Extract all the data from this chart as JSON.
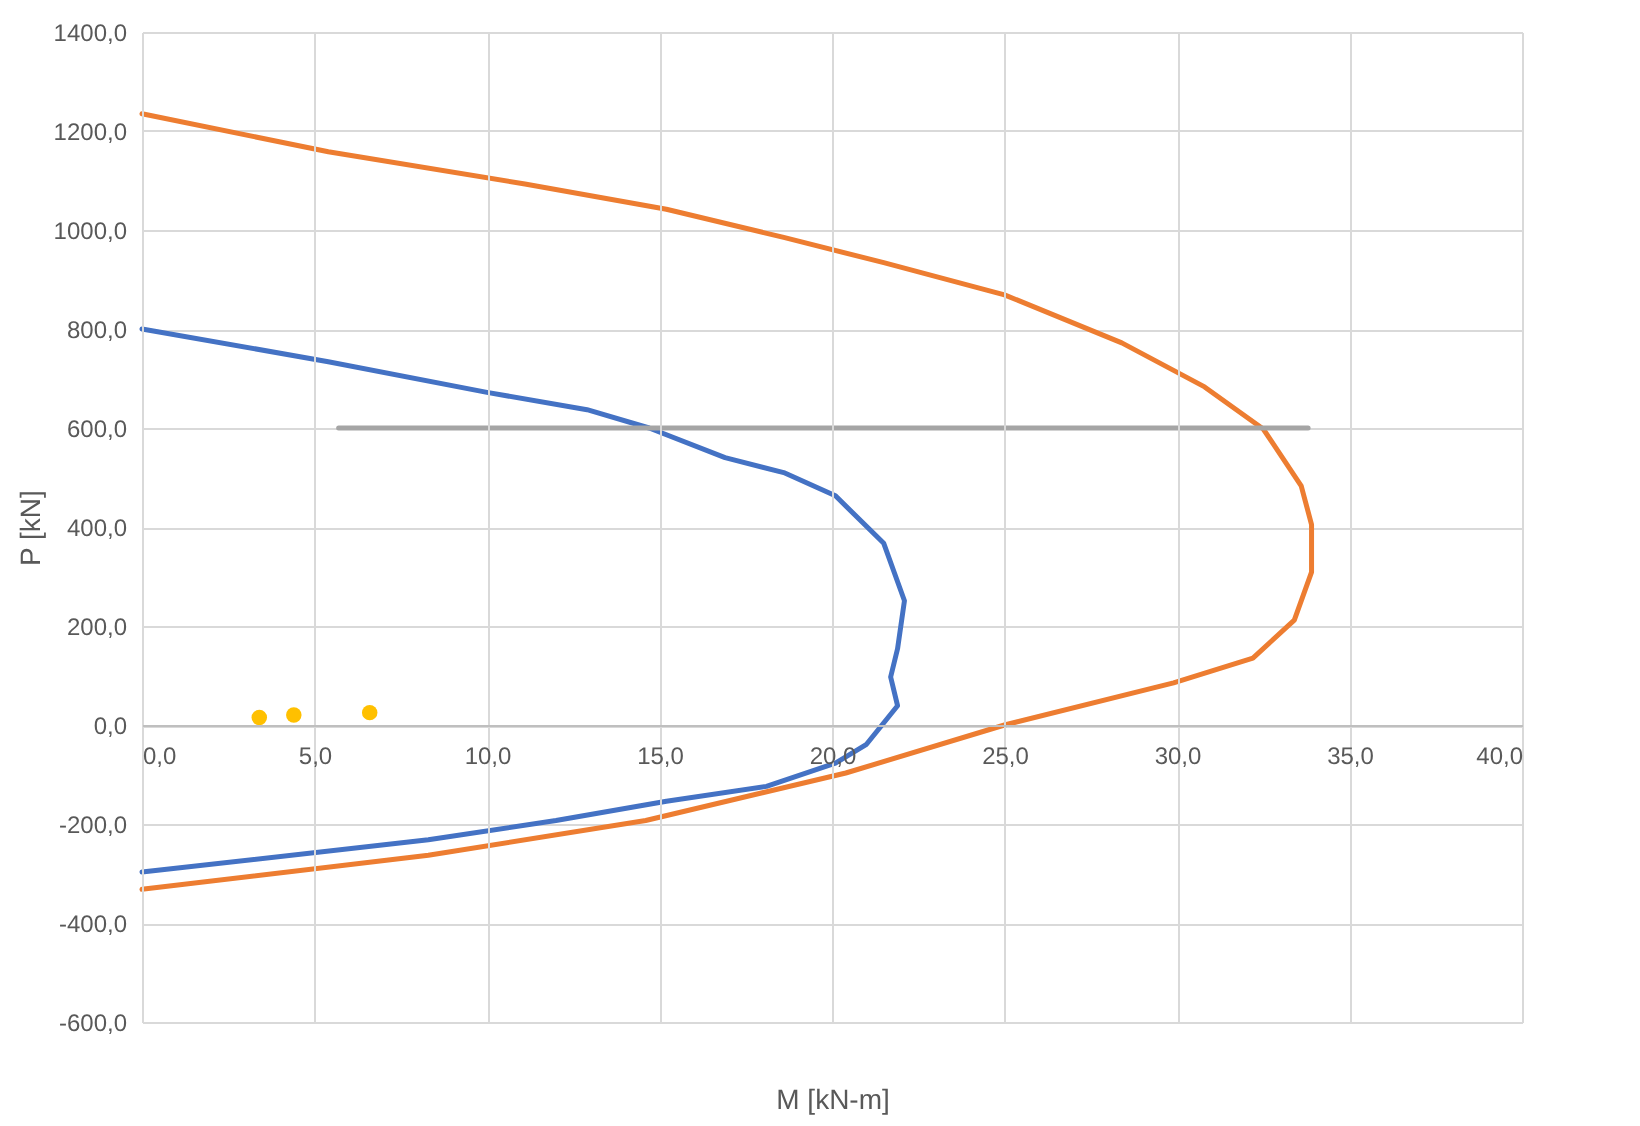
{
  "chart_data": {
    "type": "line",
    "xlabel": "M [kN-m]",
    "ylabel": "P [kN]",
    "xlim": [
      0,
      40
    ],
    "ylim": [
      -600,
      1400
    ],
    "xticks": [
      {
        "value": 0,
        "label": "0,0"
      },
      {
        "value": 5,
        "label": "5,0"
      },
      {
        "value": 10,
        "label": "10,0"
      },
      {
        "value": 15,
        "label": "15,0"
      },
      {
        "value": 20,
        "label": "20,0"
      },
      {
        "value": 25,
        "label": "25,0"
      },
      {
        "value": 30,
        "label": "30,0"
      },
      {
        "value": 35,
        "label": "35,0"
      },
      {
        "value": 40,
        "label": "40,0"
      }
    ],
    "yticks": [
      {
        "value": -600,
        "label": "-600,0"
      },
      {
        "value": -400,
        "label": "-400,0"
      },
      {
        "value": -200,
        "label": "-200,0"
      },
      {
        "value": 0,
        "label": "0,0"
      },
      {
        "value": 200,
        "label": "200,0"
      },
      {
        "value": 400,
        "label": "400,0"
      },
      {
        "value": 600,
        "label": "600,0"
      },
      {
        "value": 800,
        "label": "800,0"
      },
      {
        "value": 1000,
        "label": "1000,0"
      },
      {
        "value": 1200,
        "label": "1200,0"
      },
      {
        "value": 1400,
        "label": "1400,0"
      }
    ],
    "grid": true,
    "series": [
      {
        "color": "#4472c4",
        "x": [
          0,
          5.4,
          10,
          12.9,
          14.7,
          16.9,
          18.6,
          20.1,
          21.5,
          22.1,
          21.9,
          21.7,
          21.9,
          21,
          20.1,
          18.1,
          15.2,
          12,
          8.3,
          0
        ],
        "values": [
          800,
          734,
          672,
          637,
          600,
          540,
          510,
          463,
          367,
          251,
          154,
          97,
          39,
          -39,
          -77,
          -124,
          -154,
          -193,
          -232,
          -297
        ]
      },
      {
        "color": "#ed7d31",
        "x": [
          0,
          5.4,
          11.1,
          15.2,
          18.6,
          21.5,
          25,
          28.4,
          30.8,
          32.5,
          33.6,
          33.9,
          33.9,
          33.4,
          32.2,
          29.9,
          25,
          20.4,
          14.6,
          8.3,
          0
        ],
        "values": [
          1235,
          1158,
          1093,
          1042,
          985,
          934,
          869,
          772,
          683,
          598,
          483,
          405,
          309,
          212,
          135,
          85,
          0,
          -97,
          -193,
          -263,
          -332
        ]
      },
      {
        "color": "#a5a5a5",
        "x": [
          5.7,
          33.8
        ],
        "values": [
          600,
          600
        ]
      },
      {
        "type": "scatter",
        "color": "#ffc000",
        "marker": "circle",
        "x": [
          3.4,
          4.4,
          6.6
        ],
        "values": [
          15,
          20,
          25
        ]
      }
    ]
  }
}
